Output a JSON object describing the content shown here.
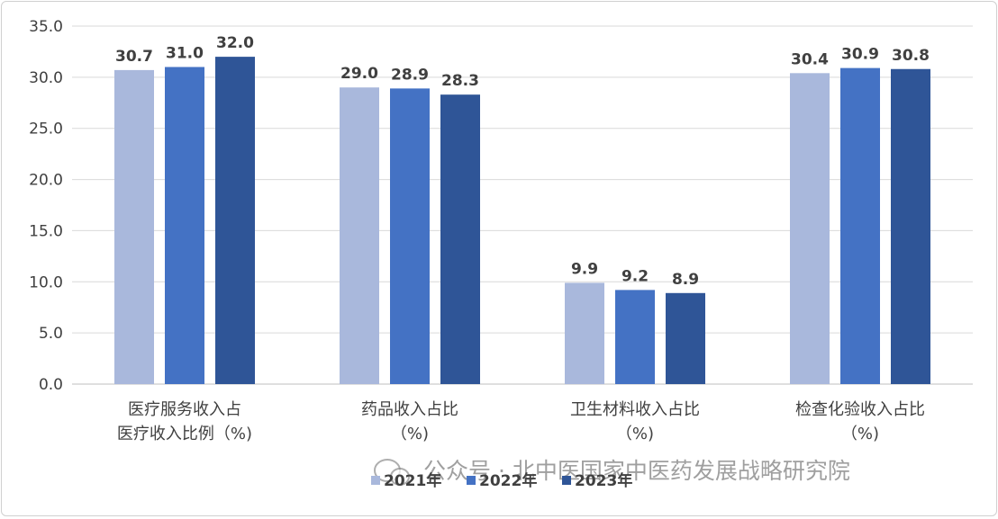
{
  "chart_data": {
    "type": "bar",
    "title": "",
    "xlabel": "",
    "ylabel": "",
    "ylim": [
      0,
      35
    ],
    "yticks": [
      "0.0",
      "5.0",
      "10.0",
      "15.0",
      "20.0",
      "25.0",
      "30.0",
      "35.0"
    ],
    "categories": [
      [
        "医疗服务收入占",
        "医疗收入比例（%)"
      ],
      [
        "药品收入占比",
        "（%)"
      ],
      [
        "卫生材料收入占比",
        "（%)"
      ],
      [
        "检查化验收入占比",
        "（%)"
      ]
    ],
    "series": [
      {
        "name": "2021年",
        "color": "#a9b8dc",
        "values": [
          30.7,
          29.0,
          9.9,
          30.4
        ],
        "labels": [
          "30.7",
          "29.0",
          "9.9",
          "30.4"
        ]
      },
      {
        "name": "2022年",
        "color": "#4472c4",
        "values": [
          31.0,
          28.9,
          9.2,
          30.9
        ],
        "labels": [
          "31.0",
          "28.9",
          "9.2",
          "30.9"
        ]
      },
      {
        "name": "2023年",
        "color": "#2f5597",
        "values": [
          32.0,
          28.3,
          8.9,
          30.8
        ],
        "labels": [
          "32.0",
          "28.3",
          "8.9",
          "30.8"
        ]
      }
    ],
    "grid": true,
    "legend": "bottom-center",
    "watermark": "公众号 · 北中医国家中医药发展战略研究院"
  }
}
